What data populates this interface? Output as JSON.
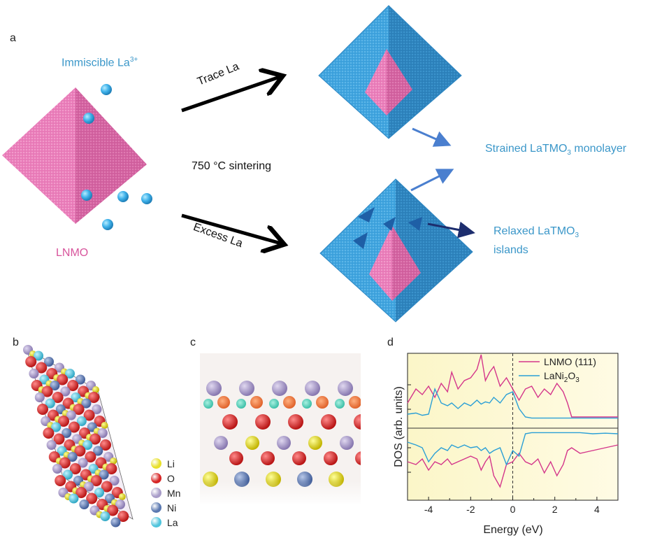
{
  "panel_a": {
    "letter": "a",
    "immiscible_label": "Immiscible La",
    "immiscible_sup": "3+",
    "lnmo_label": "LNMO",
    "trace_label": "Trace La",
    "excess_label": "Excess La",
    "sintering_label": "750 °C sintering",
    "strained_label_pre": "Strained LaTMO",
    "strained_sub": "3",
    "strained_label_post": " monolayer",
    "relaxed_label_pre": "Relaxed LaTMO",
    "relaxed_sub": "3",
    "relaxed_label_line2": "islands",
    "colors": {
      "pink": "#e778b6",
      "blue": "#3a9fdb",
      "dark_blue": "#1d2e6e",
      "arrow_blue": "#4a7fcf"
    }
  },
  "panel_b": {
    "letter": "b",
    "legend": [
      {
        "label": "Li",
        "color": "#e8e02a"
      },
      {
        "label": "O",
        "color": "#d62424"
      },
      {
        "label": "Mn",
        "color": "#a89cc8"
      },
      {
        "label": "Ni",
        "color": "#5a78b0"
      },
      {
        "label": "La",
        "color": "#4fc4dc"
      }
    ]
  },
  "panel_c": {
    "letter": "c"
  },
  "panel_d": {
    "letter": "d",
    "xlabel": "Energy (eV)",
    "ylabel": "DOS (arb. units)",
    "legend_lnmo": "LNMO (111)",
    "legend_lani_pre": "LaNi",
    "legend_lani_sub1": "2",
    "legend_lani_mid": "O",
    "legend_lani_sub2": "3",
    "xticks": [
      "-4",
      "-2",
      "0",
      "2",
      "4"
    ]
  },
  "chart_data": {
    "type": "line",
    "xlabel": "Energy (eV)",
    "ylabel": "DOS (arb. units)",
    "xlim": [
      -5,
      5
    ],
    "x_ticks": [
      -4,
      -2,
      0,
      2,
      4
    ],
    "series": [
      {
        "name": "LNMO (111)",
        "color": "#d4368b",
        "x": [
          -5,
          -4.6,
          -4.3,
          -4,
          -3.7,
          -3.4,
          -3.1,
          -2.9,
          -2.6,
          -2.3,
          -2,
          -1.7,
          -1.5,
          -1.3,
          -1.1,
          -0.9,
          -0.6,
          -0.3,
          0,
          0.3,
          0.6,
          0.9,
          1.2,
          1.5,
          1.8,
          2.1,
          2.4,
          2.6,
          2.8,
          3.2,
          3.8,
          4.4,
          5
        ],
        "up": [
          0.3,
          0.55,
          0.45,
          0.6,
          0.4,
          0.65,
          0.5,
          0.85,
          0.55,
          0.7,
          0.75,
          0.9,
          1.2,
          0.7,
          0.85,
          0.95,
          0.6,
          0.75,
          0.55,
          0.35,
          0.55,
          0.6,
          0.4,
          0.55,
          0.45,
          0.65,
          0.5,
          0.3,
          0.05,
          0.05,
          0.05,
          0.05,
          0.05
        ],
        "down": [
          -0.55,
          -0.6,
          -0.5,
          -0.7,
          -0.55,
          -0.6,
          -0.5,
          -0.6,
          -0.55,
          -0.5,
          -0.45,
          -0.5,
          -0.7,
          -0.55,
          -0.45,
          -0.8,
          -1.0,
          -0.6,
          -0.55,
          -0.4,
          -0.55,
          -0.6,
          -0.5,
          -0.75,
          -0.55,
          -0.8,
          -0.6,
          -0.35,
          -0.3,
          -0.4,
          -0.35,
          -0.3,
          -0.25
        ]
      },
      {
        "name": "LaNi2O3",
        "color": "#2a9fd6",
        "x": [
          -5,
          -4.6,
          -4.3,
          -4,
          -3.7,
          -3.4,
          -3.1,
          -2.9,
          -2.6,
          -2.3,
          -2,
          -1.7,
          -1.5,
          -1.3,
          -1.1,
          -0.9,
          -0.6,
          -0.3,
          0,
          0.3,
          0.6,
          0.9,
          1.2,
          1.5,
          1.8,
          2.1,
          2.4,
          2.6,
          2.8,
          3.2,
          3.8,
          4.4,
          5
        ],
        "up": [
          0.1,
          0.12,
          0.08,
          0.1,
          0.55,
          0.3,
          0.25,
          0.3,
          0.2,
          0.3,
          0.25,
          0.35,
          0.28,
          0.32,
          0.3,
          0.4,
          0.3,
          0.45,
          0.5,
          0.2,
          0.05,
          0.03,
          0.03,
          0.03,
          0.03,
          0.03,
          0.03,
          0.03,
          0.03,
          0.03,
          0.03,
          0.03,
          0.03
        ],
        "down": [
          -0.2,
          -0.25,
          -0.3,
          -0.55,
          -0.4,
          -0.3,
          -0.35,
          -0.25,
          -0.3,
          -0.25,
          -0.3,
          -0.28,
          -0.35,
          -0.3,
          -0.4,
          -0.35,
          -0.3,
          -0.6,
          -0.35,
          -0.45,
          -0.05,
          -0.03,
          -0.03,
          -0.03,
          -0.03,
          -0.03,
          -0.03,
          -0.03,
          -0.03,
          -0.03,
          -0.05,
          -0.04,
          -0.05
        ]
      }
    ],
    "annotations": [
      "vertical dashed line at 0 eV",
      "horizontal zero line"
    ],
    "legend_position": "top-right"
  }
}
